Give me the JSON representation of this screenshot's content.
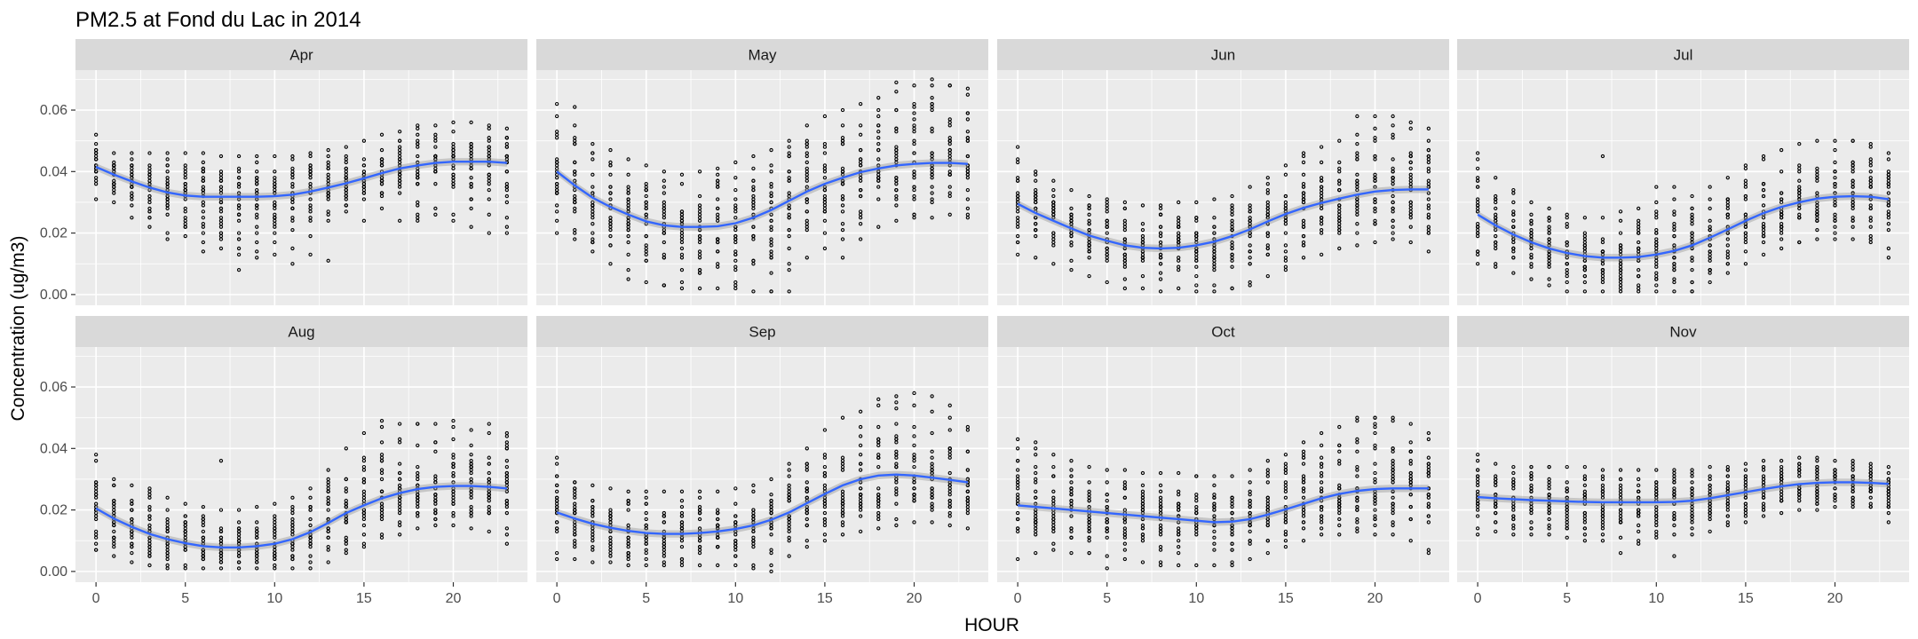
{
  "chart_data": {
    "type": "scatter",
    "title": "PM2.5 at Fond du Lac in 2014",
    "xlabel": "HOUR",
    "ylabel": "Concentration (ug/m3)",
    "xlim": [
      -1.15,
      24.15
    ],
    "ylim": [
      -0.0035,
      0.073
    ],
    "x_ticks": [
      0,
      5,
      10,
      15,
      20
    ],
    "y_ticks": [
      0.0,
      0.02,
      0.04,
      0.06
    ],
    "y_tick_labels": [
      "0.00",
      "0.02",
      "0.04",
      "0.06"
    ],
    "x_tick_labels": [
      "0",
      "5",
      "10",
      "15",
      "20"
    ],
    "grid": true,
    "point_color": "#000000",
    "smooth_color": "#3366FF",
    "band_color": "#999999",
    "panel_bg": "#EBEBEB",
    "strip_bg": "#D9D9D9",
    "panels": [
      {
        "label": "Apr",
        "smooth": [
          0.0415,
          0.039,
          0.0368,
          0.0348,
          0.0332,
          0.0322,
          0.0318,
          0.0318,
          0.0318,
          0.0318,
          0.032,
          0.0325,
          0.0335,
          0.0348,
          0.0362,
          0.0378,
          0.0395,
          0.041,
          0.042,
          0.0428,
          0.0432,
          0.0432,
          0.0432,
          0.0428
        ],
        "lo": [
          0.031,
          0.03,
          0.029,
          0.022,
          0.02,
          0.019,
          0.017,
          0.015,
          0.013,
          0.014,
          0.013,
          0.015,
          0.019,
          0.024,
          0.027,
          0.031,
          0.032,
          0.033,
          0.024,
          0.026,
          0.026,
          0.028,
          0.026,
          0.022
        ],
        "hi": [
          0.049,
          0.046,
          0.046,
          0.046,
          0.046,
          0.046,
          0.046,
          0.045,
          0.045,
          0.045,
          0.045,
          0.045,
          0.046,
          0.047,
          0.048,
          0.05,
          0.052,
          0.053,
          0.055,
          0.055,
          0.056,
          0.056,
          0.055,
          0.054
        ],
        "extra": [
          [
            0,
            0.052
          ],
          [
            8,
            0.008
          ],
          [
            11,
            0.01
          ],
          [
            12,
            0.013
          ],
          [
            13,
            0.011
          ],
          [
            15,
            0.024
          ],
          [
            16,
            0.028
          ],
          [
            17,
            0.024
          ],
          [
            20,
            0.024
          ],
          [
            21,
            0.022
          ],
          [
            22,
            0.02
          ],
          [
            23,
            0.02
          ],
          [
            2,
            0.025
          ],
          [
            4,
            0.018
          ],
          [
            6,
            0.014
          ],
          [
            9,
            0.012
          ]
        ]
      },
      {
        "label": "May",
        "smooth": [
          0.04,
          0.0355,
          0.0315,
          0.0285,
          0.026,
          0.0238,
          0.0225,
          0.022,
          0.022,
          0.0222,
          0.0232,
          0.025,
          0.0275,
          0.0305,
          0.0335,
          0.036,
          0.038,
          0.0398,
          0.041,
          0.042,
          0.0425,
          0.0428,
          0.0428,
          0.0425
        ],
        "lo": [
          0.02,
          0.018,
          0.014,
          0.01,
          0.008,
          0.004,
          0.003,
          0.002,
          0.002,
          0.002,
          0.002,
          0.001,
          0.001,
          0.008,
          0.012,
          0.015,
          0.018,
          0.018,
          0.022,
          0.024,
          0.025,
          0.025,
          0.026,
          0.025
        ],
        "hi": [
          0.058,
          0.055,
          0.049,
          0.047,
          0.044,
          0.042,
          0.04,
          0.039,
          0.04,
          0.041,
          0.043,
          0.045,
          0.047,
          0.05,
          0.055,
          0.058,
          0.06,
          0.062,
          0.064,
          0.066,
          0.068,
          0.068,
          0.068,
          0.067
        ],
        "extra": [
          [
            0,
            0.062
          ],
          [
            1,
            0.061
          ],
          [
            4,
            0.005
          ],
          [
            6,
            0.003
          ],
          [
            10,
            0.003
          ],
          [
            12,
            0.001
          ],
          [
            13,
            0.001
          ],
          [
            16,
            0.012
          ],
          [
            19,
            0.069
          ],
          [
            21,
            0.07
          ],
          [
            22,
            0.068
          ]
        ]
      },
      {
        "label": "Jun",
        "smooth": [
          0.0295,
          0.0265,
          0.024,
          0.0215,
          0.0192,
          0.0175,
          0.016,
          0.0152,
          0.015,
          0.0152,
          0.016,
          0.0172,
          0.019,
          0.0212,
          0.0238,
          0.0262,
          0.0282,
          0.0298,
          0.0312,
          0.0325,
          0.0335,
          0.034,
          0.0342,
          0.0342
        ],
        "lo": [
          0.013,
          0.012,
          0.01,
          0.008,
          0.006,
          0.004,
          0.002,
          0.002,
          0.001,
          0.002,
          0.001,
          0.001,
          0.002,
          0.004,
          0.006,
          0.008,
          0.012,
          0.013,
          0.015,
          0.016,
          0.017,
          0.018,
          0.017,
          0.014
        ],
        "hi": [
          0.044,
          0.039,
          0.037,
          0.034,
          0.032,
          0.031,
          0.03,
          0.029,
          0.029,
          0.03,
          0.03,
          0.031,
          0.032,
          0.035,
          0.038,
          0.042,
          0.045,
          0.048,
          0.05,
          0.052,
          0.054,
          0.055,
          0.054,
          0.05
        ],
        "extra": [
          [
            0,
            0.048
          ],
          [
            1,
            0.04
          ],
          [
            12,
            0.002
          ],
          [
            13,
            0.003
          ],
          [
            16,
            0.046
          ],
          [
            19,
            0.058
          ],
          [
            20,
            0.058
          ],
          [
            21,
            0.058
          ],
          [
            22,
            0.056
          ],
          [
            23,
            0.054
          ]
        ]
      },
      {
        "label": "Jul",
        "smooth": [
          0.026,
          0.0225,
          0.0195,
          0.017,
          0.015,
          0.0135,
          0.0125,
          0.012,
          0.012,
          0.0122,
          0.013,
          0.0142,
          0.016,
          0.0185,
          0.0212,
          0.024,
          0.0265,
          0.0285,
          0.03,
          0.0312,
          0.0318,
          0.032,
          0.0318,
          0.031
        ],
        "lo": [
          0.01,
          0.009,
          0.007,
          0.005,
          0.003,
          0.001,
          0.001,
          0.001,
          0.001,
          0.001,
          0.001,
          0.001,
          0.001,
          0.004,
          0.007,
          0.01,
          0.013,
          0.015,
          0.017,
          0.018,
          0.018,
          0.018,
          0.017,
          0.015
        ],
        "hi": [
          0.044,
          0.038,
          0.034,
          0.03,
          0.028,
          0.026,
          0.025,
          0.025,
          0.027,
          0.028,
          0.03,
          0.031,
          0.032,
          0.035,
          0.038,
          0.042,
          0.045,
          0.047,
          0.049,
          0.05,
          0.05,
          0.05,
          0.049,
          0.046
        ],
        "extra": [
          [
            0,
            0.046
          ],
          [
            7,
            0.045
          ],
          [
            10,
            0.035
          ],
          [
            11,
            0.035
          ],
          [
            12,
            0.001
          ],
          [
            21,
            0.05
          ],
          [
            22,
            0.048
          ],
          [
            23,
            0.012
          ]
        ]
      },
      {
        "label": "Aug",
        "smooth": [
          0.0205,
          0.0172,
          0.0145,
          0.0122,
          0.0105,
          0.0092,
          0.0082,
          0.0078,
          0.0078,
          0.0082,
          0.009,
          0.0105,
          0.0128,
          0.0158,
          0.019,
          0.0215,
          0.0238,
          0.0255,
          0.0268,
          0.0275,
          0.0278,
          0.0278,
          0.0275,
          0.027
        ],
        "lo": [
          0.007,
          0.005,
          0.003,
          0.002,
          0.001,
          0.001,
          0.001,
          0.001,
          0.001,
          0.001,
          0.001,
          0.001,
          0.001,
          0.003,
          0.006,
          0.008,
          0.011,
          0.012,
          0.014,
          0.015,
          0.015,
          0.014,
          0.013,
          0.009
        ],
        "hi": [
          0.036,
          0.03,
          0.028,
          0.027,
          0.024,
          0.022,
          0.021,
          0.02,
          0.02,
          0.021,
          0.022,
          0.024,
          0.027,
          0.033,
          0.04,
          0.045,
          0.047,
          0.048,
          0.048,
          0.048,
          0.047,
          0.046,
          0.045,
          0.044
        ],
        "extra": [
          [
            0,
            0.038
          ],
          [
            7,
            0.036
          ],
          [
            16,
            0.049
          ],
          [
            18,
            0.048
          ],
          [
            20,
            0.049
          ],
          [
            22,
            0.048
          ],
          [
            23,
            0.045
          ]
        ]
      },
      {
        "label": "Sep",
        "smooth": [
          0.0192,
          0.0172,
          0.0155,
          0.0142,
          0.0132,
          0.0125,
          0.0122,
          0.0122,
          0.0125,
          0.013,
          0.0138,
          0.015,
          0.0168,
          0.0192,
          0.0222,
          0.0252,
          0.028,
          0.03,
          0.0312,
          0.0315,
          0.0312,
          0.0305,
          0.0298,
          0.029
        ],
        "lo": [
          0.004,
          0.004,
          0.003,
          0.003,
          0.002,
          0.002,
          0.002,
          0.002,
          0.002,
          0.002,
          0.002,
          0.002,
          0.002,
          0.005,
          0.008,
          0.01,
          0.012,
          0.013,
          0.014,
          0.015,
          0.016,
          0.016,
          0.015,
          0.014
        ],
        "hi": [
          0.035,
          0.029,
          0.028,
          0.027,
          0.026,
          0.026,
          0.026,
          0.026,
          0.026,
          0.026,
          0.027,
          0.028,
          0.03,
          0.035,
          0.04,
          0.046,
          0.05,
          0.052,
          0.054,
          0.055,
          0.054,
          0.052,
          0.05,
          0.046
        ],
        "extra": [
          [
            0,
            0.037
          ],
          [
            11,
            0.001
          ],
          [
            12,
            0.0
          ],
          [
            18,
            0.056
          ],
          [
            19,
            0.057
          ],
          [
            20,
            0.058
          ],
          [
            21,
            0.057
          ],
          [
            22,
            0.054
          ],
          [
            23,
            0.047
          ]
        ]
      },
      {
        "label": "Oct",
        "smooth": [
          0.0215,
          0.021,
          0.0205,
          0.02,
          0.0195,
          0.019,
          0.0185,
          0.018,
          0.0175,
          0.017,
          0.0165,
          0.016,
          0.0162,
          0.017,
          0.0185,
          0.0202,
          0.022,
          0.0238,
          0.0252,
          0.0262,
          0.0268,
          0.027,
          0.027,
          0.027
        ],
        "lo": [
          0.004,
          0.006,
          0.007,
          0.006,
          0.006,
          0.005,
          0.004,
          0.003,
          0.003,
          0.002,
          0.002,
          0.002,
          0.002,
          0.004,
          0.006,
          0.008,
          0.01,
          0.012,
          0.012,
          0.013,
          0.012,
          0.012,
          0.01,
          0.007
        ],
        "hi": [
          0.04,
          0.04,
          0.038,
          0.036,
          0.034,
          0.033,
          0.033,
          0.032,
          0.032,
          0.032,
          0.031,
          0.031,
          0.031,
          0.033,
          0.036,
          0.038,
          0.042,
          0.045,
          0.047,
          0.049,
          0.05,
          0.05,
          0.048,
          0.045
        ],
        "extra": [
          [
            0,
            0.043
          ],
          [
            1,
            0.042
          ],
          [
            5,
            0.001
          ],
          [
            8,
            0.002
          ],
          [
            19,
            0.05
          ],
          [
            20,
            0.05
          ],
          [
            21,
            0.049
          ],
          [
            23,
            0.006
          ]
        ]
      },
      {
        "label": "Nov",
        "smooth": [
          0.0242,
          0.0238,
          0.0235,
          0.0232,
          0.023,
          0.0228,
          0.0226,
          0.0225,
          0.0225,
          0.0225,
          0.0225,
          0.0226,
          0.023,
          0.0238,
          0.0248,
          0.0258,
          0.0268,
          0.0277,
          0.0284,
          0.0288,
          0.029,
          0.029,
          0.0288,
          0.0285
        ],
        "lo": [
          0.012,
          0.013,
          0.012,
          0.012,
          0.012,
          0.011,
          0.01,
          0.01,
          0.011,
          0.009,
          0.011,
          0.012,
          0.012,
          0.013,
          0.015,
          0.016,
          0.018,
          0.019,
          0.02,
          0.02,
          0.021,
          0.021,
          0.021,
          0.019
        ],
        "hi": [
          0.036,
          0.035,
          0.034,
          0.034,
          0.034,
          0.034,
          0.034,
          0.033,
          0.033,
          0.033,
          0.033,
          0.033,
          0.033,
          0.034,
          0.034,
          0.035,
          0.036,
          0.036,
          0.037,
          0.037,
          0.036,
          0.036,
          0.035,
          0.034
        ],
        "extra": [
          [
            0,
            0.038
          ],
          [
            8,
            0.006
          ],
          [
            11,
            0.005
          ],
          [
            23,
            0.016
          ]
        ]
      }
    ]
  }
}
